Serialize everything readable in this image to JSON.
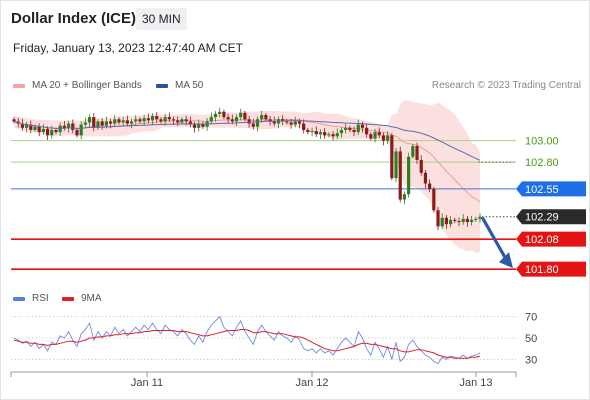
{
  "header": {
    "title": "Dollar Index (ICE)",
    "timeframe": "30 MIN",
    "datetime": "Friday, January 13, 2023 12:47:40 AM CET"
  },
  "legend": {
    "main": [
      {
        "label": "MA 20 + Bollinger Bands",
        "color": "#f08080"
      },
      {
        "label": "MA 50",
        "color": "#2b579a"
      }
    ],
    "rsi": [
      {
        "label": "RSI",
        "color": "#5b7fd6"
      },
      {
        "label": "9MA",
        "color": "#e02020"
      }
    ]
  },
  "copyright": "Research © 2023 Trading Central",
  "chart_data": {
    "type": "candlestick",
    "x_tick_labels": [
      "Jan 11",
      "Jan 12",
      "Jan 13"
    ],
    "y_range": [
      101.68,
      103.38
    ],
    "price_levels": [
      {
        "value": 103.0,
        "label": "103.00",
        "style": "green-line"
      },
      {
        "value": 102.8,
        "label": "102.80",
        "style": "green-line"
      },
      {
        "value": 102.55,
        "label": "102.55",
        "style": "blue-badge"
      },
      {
        "value": 102.29,
        "label": "102.29",
        "style": "current-price"
      },
      {
        "value": 102.08,
        "label": "102.08",
        "style": "red-badge"
      },
      {
        "value": 101.8,
        "label": "101.80",
        "style": "red-badge"
      }
    ],
    "current_price": "102.29",
    "forecast_arrow": {
      "from": 102.29,
      "to": 101.8
    },
    "closes": [
      103.18,
      103.16,
      103.12,
      103.15,
      103.1,
      103.13,
      103.08,
      103.11,
      103.05,
      103.1,
      103.08,
      103.14,
      103.12,
      103.16,
      103.1,
      103.05,
      103.15,
      103.17,
      103.22,
      103.12,
      103.18,
      103.14,
      103.18,
      103.16,
      103.2,
      103.17,
      103.19,
      103.16,
      103.18,
      103.2,
      103.18,
      103.21,
      103.19,
      103.23,
      103.2,
      103.18,
      103.22,
      103.2,
      103.19,
      103.17,
      103.2,
      103.18,
      103.15,
      103.12,
      103.16,
      103.13,
      103.18,
      103.22,
      103.25,
      103.27,
      103.22,
      103.2,
      103.18,
      103.22,
      103.26,
      103.2,
      103.16,
      103.13,
      103.2,
      103.24,
      103.2,
      103.18,
      103.16,
      103.2,
      103.18,
      103.17,
      103.15,
      103.18,
      103.16,
      103.1,
      103.08,
      103.09,
      103.06,
      103.08,
      103.05,
      103.06,
      103.04,
      103.07,
      103.1,
      103.12,
      103.1,
      103.08,
      103.15,
      103.12,
      103.06,
      103.02,
      103.08,
      103.05,
      103.0,
      103.05,
      102.65,
      102.9,
      102.45,
      102.5,
      102.85,
      102.95,
      102.82,
      102.7,
      102.6,
      102.55,
      102.35,
      102.2,
      102.28,
      102.22,
      102.26,
      102.25,
      102.24,
      102.27,
      102.24,
      102.26,
      102.27,
      102.29
    ],
    "rsi": {
      "y_range": [
        20,
        80
      ],
      "levels": [
        70,
        50,
        30
      ],
      "values": [
        50,
        48,
        45,
        47,
        42,
        46,
        40,
        44,
        38,
        46,
        44,
        52,
        50,
        56,
        48,
        42,
        54,
        58,
        64,
        48,
        56,
        50,
        56,
        52,
        60,
        54,
        58,
        52,
        56,
        60,
        56,
        62,
        58,
        64,
        58,
        54,
        62,
        58,
        56,
        52,
        58,
        54,
        48,
        44,
        52,
        46,
        56,
        62,
        66,
        70,
        60,
        56,
        52,
        60,
        66,
        56,
        50,
        44,
        56,
        62,
        56,
        52,
        48,
        56,
        52,
        50,
        46,
        52,
        48,
        40,
        38,
        40,
        36,
        40,
        36,
        38,
        34,
        40,
        46,
        50,
        46,
        42,
        56,
        50,
        40,
        34,
        46,
        40,
        32,
        42,
        30,
        46,
        28,
        32,
        44,
        48,
        42,
        38,
        34,
        32,
        28,
        26,
        32,
        30,
        33,
        32,
        31,
        34,
        31,
        33,
        34,
        36
      ],
      "ma9": [
        48,
        47,
        46,
        46,
        45,
        45,
        44,
        44,
        43,
        44,
        44,
        45,
        46,
        47,
        47,
        46,
        47,
        48,
        50,
        50,
        51,
        51,
        52,
        52,
        53,
        53,
        54,
        54,
        54,
        55,
        55,
        56,
        56,
        57,
        57,
        57,
        57,
        57,
        57,
        56,
        56,
        56,
        55,
        54,
        53,
        52,
        52,
        53,
        54,
        55,
        56,
        57,
        57,
        57,
        58,
        58,
        57,
        55,
        55,
        56,
        56,
        55,
        54,
        54,
        54,
        53,
        52,
        51,
        51,
        50,
        48,
        46,
        44,
        42,
        40,
        39,
        38,
        38,
        39,
        40,
        41,
        42,
        44,
        45,
        45,
        44,
        44,
        43,
        42,
        41,
        40,
        40,
        38,
        37,
        37,
        38,
        39,
        39,
        38,
        37,
        36,
        34,
        33,
        32,
        32,
        31,
        31,
        31,
        31,
        32,
        32,
        33
      ]
    }
  }
}
